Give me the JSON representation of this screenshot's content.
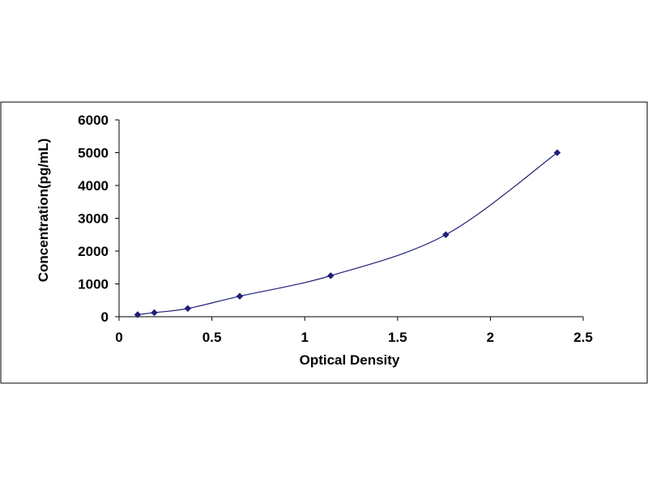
{
  "chart_data": {
    "type": "scatter",
    "title": "",
    "xlabel": "Optical Density",
    "ylabel": "Concentration(pg/mL)",
    "xlim": [
      0,
      2.5
    ],
    "ylim": [
      0,
      6000
    ],
    "x_ticks": [
      "0",
      "0.5",
      "1",
      "1.5",
      "2",
      "2.5"
    ],
    "y_ticks": [
      "0",
      "1000",
      "2000",
      "3000",
      "4000",
      "5000",
      "6000"
    ],
    "grid": false,
    "legend": "none",
    "series": [
      {
        "x": [
          0.1,
          0.19,
          0.37,
          0.65,
          1.14,
          1.76,
          2.36
        ],
        "y": [
          62.5,
          125,
          250,
          625,
          1250,
          2500,
          5000
        ],
        "marker": "diamond",
        "color": "#1f1f7a",
        "fit_line": "smooth"
      }
    ],
    "colors": {
      "line": "#1f1f7a",
      "marker": "#1f1f7a",
      "axis": "#000000",
      "frame": "#000000"
    }
  }
}
